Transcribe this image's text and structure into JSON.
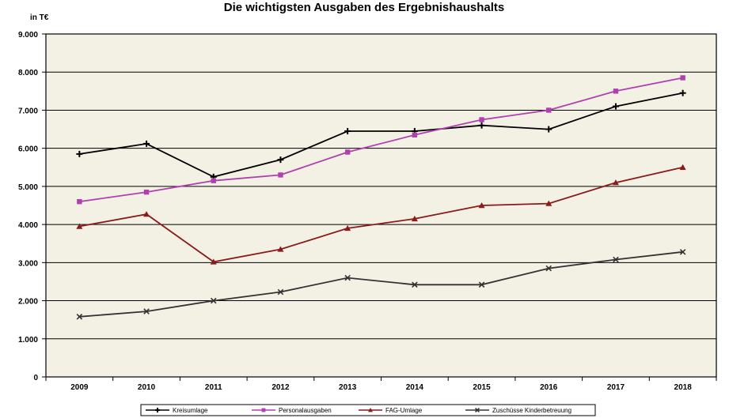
{
  "chart_data": {
    "type": "line",
    "title": "Die wichtigsten Ausgaben des Ergebnishaushalts",
    "unit_label": "in T€",
    "x": [
      "2009",
      "2010",
      "2011",
      "2012",
      "2013",
      "2014",
      "2015",
      "2016",
      "2017",
      "2018"
    ],
    "ylim": [
      0,
      9000
    ],
    "y_ticks": [
      0,
      1000,
      2000,
      3000,
      4000,
      5000,
      6000,
      7000,
      8000,
      9000
    ],
    "y_tick_labels": [
      "0",
      "1.000",
      "2.000",
      "3.000",
      "4.000",
      "5.000",
      "6.000",
      "7.000",
      "8.000",
      "9.000"
    ],
    "grid": true,
    "legend_position": "bottom",
    "series": [
      {
        "name": "Kreisumlage",
        "color": "#000000",
        "marker": "plus",
        "values": [
          5850,
          6120,
          5250,
          5700,
          6450,
          6450,
          6600,
          6500,
          7100,
          7450
        ]
      },
      {
        "name": "Personalausgaben",
        "color": "#b040b0",
        "marker": "square",
        "values": [
          4600,
          4850,
          5150,
          5300,
          5900,
          6350,
          6750,
          7000,
          7500,
          7850
        ]
      },
      {
        "name": "FAG-Umlage",
        "color": "#8b1a1a",
        "marker": "triangle",
        "values": [
          3950,
          4270,
          3020,
          3350,
          3900,
          4150,
          4500,
          4550,
          5100,
          5500
        ]
      },
      {
        "name": "Zuschüsse Kinderbetreuung",
        "color": "#333333",
        "marker": "x",
        "values": [
          1580,
          1720,
          2000,
          2230,
          2600,
          2420,
          2420,
          2850,
          3080,
          3280
        ]
      }
    ]
  },
  "style": {
    "plot_background": "#f3f1e4",
    "grid_color": "#000000"
  }
}
